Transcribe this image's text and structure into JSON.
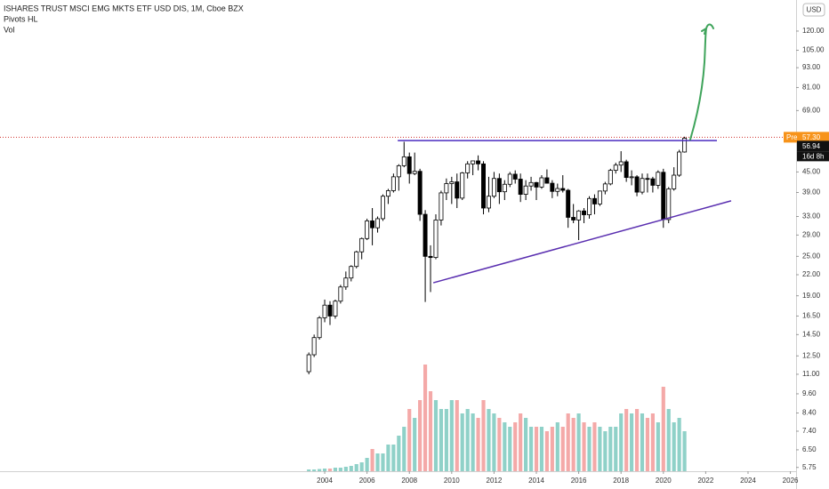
{
  "chart_data": {
    "type": "candlestick",
    "title": "ISHARES TRUST MSCI EMG MKTS ETF USD DIS, 1M, Cboe BZX",
    "indicators": [
      "Pivots HL",
      "Vol"
    ],
    "currency": "USD",
    "log_scale": true,
    "up_color": "#ffffff",
    "down_color": "#000000",
    "volume_up_color": "#8fd1c8",
    "volume_down_color": "#f4a9a8",
    "x": [
      2003.25,
      2003.5,
      2003.75,
      2004,
      2004.25,
      2004.5,
      2004.75,
      2005,
      2005.25,
      2005.5,
      2005.75,
      2006,
      2006.25,
      2006.5,
      2006.75,
      2007,
      2007.25,
      2007.5,
      2007.75,
      2008,
      2008.25,
      2008.5,
      2008.75,
      2009,
      2009.25,
      2009.5,
      2009.75,
      2010,
      2010.25,
      2010.5,
      2010.75,
      2011,
      2011.25,
      2011.5,
      2011.75,
      2012,
      2012.25,
      2012.5,
      2012.75,
      2013,
      2013.25,
      2013.5,
      2013.75,
      2014,
      2014.25,
      2014.5,
      2014.75,
      2015,
      2015.25,
      2015.5,
      2015.75,
      2016,
      2016.25,
      2016.5,
      2016.75,
      2017,
      2017.25,
      2017.5,
      2017.75,
      2018,
      2018.25,
      2018.5,
      2018.75,
      2019,
      2019.25,
      2019.5,
      2019.75,
      2020,
      2020.25,
      2020.5,
      2020.75,
      2021
    ],
    "open": [
      11.2,
      12.6,
      14.2,
      16.3,
      17.8,
      16.5,
      18.3,
      20.2,
      21.5,
      23.3,
      25.8,
      28.3,
      32.0,
      30.5,
      32.5,
      38.0,
      39.5,
      43.5,
      47.0,
      50.0,
      44.5,
      45.2,
      33.5,
      25.0,
      24.8,
      32.2,
      38.9,
      41.5,
      42.0,
      37.5,
      44.7,
      47.6,
      48.6,
      47.6,
      35.0,
      38.0,
      43.0,
      39.2,
      41.3,
      44.3,
      42.8,
      38.5,
      40.8,
      41.8,
      40.5,
      43.2,
      41.6,
      39.3,
      40.1,
      39.6,
      32.8,
      32.2,
      34.3,
      33.4,
      37.4,
      36.0,
      39.4,
      41.4,
      45.5,
      47.2,
      48.3,
      43.3,
      43.5,
      39.1,
      43.0,
      42.9,
      41.0,
      44.9,
      32.3,
      40.0,
      44.0,
      51.7
    ],
    "high": [
      12.8,
      14.5,
      16.5,
      18.5,
      18.3,
      18.5,
      20.5,
      22.5,
      23.5,
      26.0,
      28.5,
      32.5,
      35.0,
      33.0,
      38.5,
      40.0,
      44.5,
      47.5,
      55.5,
      51.5,
      51.5,
      46.0,
      34.5,
      27.0,
      33.5,
      39.5,
      43.0,
      43.5,
      44.5,
      45.0,
      48.5,
      48.6,
      50.5,
      48.5,
      43.5,
      45.0,
      44.5,
      42.5,
      45.0,
      45.5,
      44.5,
      42.5,
      43.5,
      42.0,
      44.0,
      45.8,
      42.5,
      41.5,
      44.0,
      40.0,
      36.0,
      34.5,
      35.0,
      38.0,
      38.5,
      39.5,
      42.0,
      46.0,
      48.0,
      52.0,
      49.0,
      45.5,
      44.0,
      44.5,
      44.5,
      43.5,
      45.5,
      46.0,
      40.5,
      46.5,
      52.5,
      57.5
    ],
    "low": [
      11.0,
      12.4,
      14.0,
      15.8,
      15.5,
      16.2,
      18.0,
      19.8,
      21.0,
      23.0,
      24.5,
      28.0,
      27.0,
      29.5,
      32.0,
      36.0,
      39.0,
      39.5,
      46.5,
      41.5,
      44.0,
      32.0,
      18.2,
      19.5,
      24.5,
      31.0,
      37.0,
      36.0,
      35.0,
      37.0,
      43.0,
      44.0,
      45.5,
      33.5,
      34.0,
      37.5,
      36.0,
      37.0,
      40.5,
      41.5,
      36.5,
      37.0,
      39.5,
      37.0,
      40.0,
      41.5,
      37.5,
      38.0,
      39.0,
      30.5,
      31.5,
      28.0,
      31.5,
      32.5,
      33.5,
      35.5,
      38.5,
      41.0,
      44.5,
      45.0,
      42.0,
      41.0,
      38.0,
      38.5,
      39.0,
      39.0,
      40.0,
      30.5,
      31.5,
      39.5,
      43.5,
      51.5
    ],
    "close": [
      12.6,
      14.2,
      16.3,
      17.8,
      16.5,
      18.3,
      20.2,
      21.5,
      23.3,
      25.8,
      28.3,
      32.0,
      30.5,
      32.5,
      38.0,
      39.5,
      43.5,
      47.0,
      50.0,
      44.5,
      45.2,
      33.5,
      25.0,
      24.8,
      32.2,
      38.9,
      41.5,
      42.0,
      37.5,
      44.7,
      47.6,
      48.6,
      47.6,
      35.0,
      38.0,
      43.0,
      39.2,
      41.3,
      44.3,
      42.8,
      38.5,
      40.8,
      41.8,
      40.5,
      43.2,
      41.6,
      39.3,
      40.1,
      39.6,
      32.8,
      32.2,
      34.3,
      33.4,
      37.4,
      36.0,
      39.4,
      41.4,
      45.5,
      47.2,
      48.3,
      43.3,
      43.5,
      39.1,
      43.0,
      42.9,
      41.0,
      44.9,
      32.3,
      40.0,
      44.0,
      51.7,
      56.94
    ],
    "volume": [
      20,
      20,
      25,
      30,
      30,
      40,
      40,
      50,
      60,
      80,
      100,
      150,
      250,
      200,
      200,
      300,
      300,
      400,
      500,
      700,
      600,
      800,
      1200,
      900,
      800,
      700,
      700,
      800,
      800,
      650,
      700,
      650,
      600,
      800,
      700,
      650,
      600,
      550,
      500,
      550,
      650,
      600,
      500,
      500,
      500,
      450,
      500,
      550,
      500,
      650,
      600,
      650,
      550,
      500,
      550,
      500,
      450,
      500,
      500,
      650,
      700,
      650,
      700,
      650,
      600,
      650,
      550,
      950,
      700,
      550,
      600,
      450
    ],
    "xlim": [
      1988.66,
      2026.27
    ],
    "xticks": [
      2004,
      2006,
      2008,
      2010,
      2012,
      2014,
      2016,
      2018,
      2020,
      2022,
      2024,
      2026
    ],
    "ylim": [
      5.6,
      149
    ],
    "yticks": [
      {
        "value": 120,
        "label": "120.00"
      },
      {
        "value": 105,
        "label": "105.00"
      },
      {
        "value": 93,
        "label": "93.00"
      },
      {
        "value": 81,
        "label": "81.00"
      },
      {
        "value": 69,
        "label": "69.00"
      },
      {
        "value": 45,
        "label": "45.00"
      },
      {
        "value": 39,
        "label": "39.00"
      },
      {
        "value": 33,
        "label": "33.00"
      },
      {
        "value": 29,
        "label": "29.00"
      },
      {
        "value": 25,
        "label": "25.00"
      },
      {
        "value": 22,
        "label": "22.00"
      },
      {
        "value": 19,
        "label": "19.00"
      },
      {
        "value": 16.5,
        "label": "16.50"
      },
      {
        "value": 14.5,
        "label": "14.50"
      },
      {
        "value": 12.5,
        "label": "12.50"
      },
      {
        "value": 11,
        "label": "11.00"
      },
      {
        "value": 9.6,
        "label": "9.60"
      },
      {
        "value": 8.4,
        "label": "8.40"
      },
      {
        "value": 7.4,
        "label": "7.40"
      },
      {
        "value": 6.5,
        "label": "6.50"
      },
      {
        "value": 5.75,
        "label": "5.75"
      }
    ],
    "y2lim": [
      0,
      5300
    ],
    "pre_market": {
      "label": "Pre",
      "value": 57.3,
      "value_label": "57.30",
      "color": "#f7931a"
    },
    "last_price": 56.94,
    "countdown": "16d 8h",
    "trend_lines": [
      {
        "x": [
          2007.45,
          2022.53
        ],
        "y": [
          56,
          56
        ],
        "color": "#4a2bbf"
      },
      {
        "x": [
          2009.13,
          2023.2
        ],
        "y": [
          20.8,
          36.8
        ],
        "color": "#5a2fb0"
      }
    ]
  }
}
